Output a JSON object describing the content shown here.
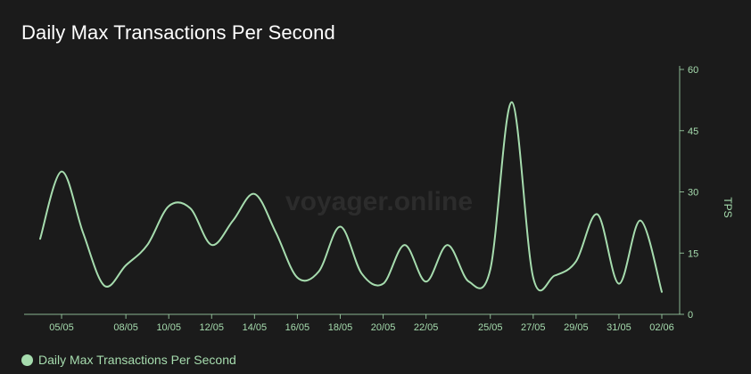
{
  "chart_data": {
    "type": "line",
    "title": "Daily Max Transactions Per Second",
    "watermark": "voyager.online",
    "ylabel": "TPS",
    "ylim": [
      0,
      60
    ],
    "yticks": [
      0,
      15,
      30,
      45,
      60
    ],
    "xticks": [
      "05/05",
      "08/05",
      "10/05",
      "12/05",
      "14/05",
      "16/05",
      "18/05",
      "20/05",
      "22/05",
      "25/05",
      "27/05",
      "29/05",
      "31/05",
      "02/06"
    ],
    "series": [
      {
        "name": "Daily Max Transactions Per Second",
        "color": "#a6dcae",
        "x": [
          "04/05",
          "05/05",
          "06/05",
          "07/05",
          "08/05",
          "09/05",
          "10/05",
          "11/05",
          "12/05",
          "13/05",
          "14/05",
          "15/05",
          "16/05",
          "17/05",
          "18/05",
          "19/05",
          "20/05",
          "21/05",
          "22/05",
          "23/05",
          "24/05",
          "25/05",
          "26/05",
          "27/05",
          "28/05",
          "29/05",
          "30/05",
          "31/05",
          "01/06",
          "02/06"
        ],
        "values": [
          18.5,
          35,
          20,
          7,
          12,
          17,
          26.5,
          26,
          17,
          23,
          29.5,
          20,
          9,
          10.5,
          21.5,
          10,
          7.5,
          17,
          8,
          17,
          8,
          11,
          52,
          9,
          9.5,
          13,
          24.5,
          7.5,
          23,
          5.5
        ]
      }
    ],
    "legend": {
      "position": "bottom-left"
    }
  }
}
